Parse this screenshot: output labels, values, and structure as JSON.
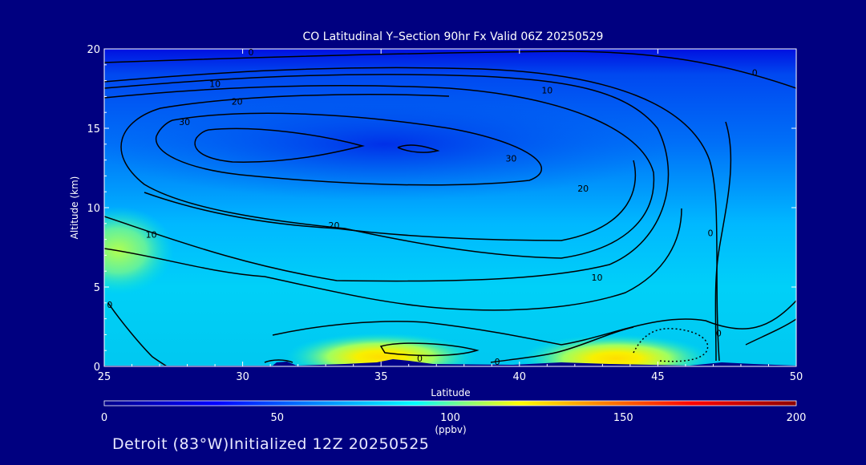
{
  "chart_data": {
    "type": "heatmap",
    "title": "CO Latitudinal Y–Section 90hr  Fx Valid 06Z 20250529",
    "xlabel": "Latitude",
    "ylabel": "Altitude (km)",
    "xlim": [
      25,
      50
    ],
    "ylim": [
      0,
      20
    ],
    "x_ticks": [
      "25",
      "30",
      "35",
      "40",
      "45",
      "50"
    ],
    "y_ticks": [
      "0",
      "5",
      "10",
      "15",
      "20"
    ],
    "colorbar": {
      "label": "(ppbv)",
      "ticks": [
        "0",
        "50",
        "100",
        "150",
        "200"
      ],
      "min": 0,
      "max": 200,
      "colors": [
        "#00008b",
        "#0000ff",
        "#0080ff",
        "#00ffff",
        "#80ff80",
        "#ffff00",
        "#ff8000",
        "#ff0000",
        "#8b0000"
      ]
    },
    "contour_labels": [
      {
        "text": "0",
        "lat": 30.3,
        "alt": 19.8
      },
      {
        "text": "10",
        "lat": 29.0,
        "alt": 17.8
      },
      {
        "text": "20",
        "lat": 29.8,
        "alt": 16.7
      },
      {
        "text": "30",
        "lat": 27.9,
        "alt": 15.4
      },
      {
        "text": "10",
        "lat": 41.0,
        "alt": 17.4
      },
      {
        "text": "0",
        "lat": 48.5,
        "alt": 18.5
      },
      {
        "text": "30",
        "lat": 39.7,
        "alt": 13.1
      },
      {
        "text": "20",
        "lat": 42.3,
        "alt": 11.2
      },
      {
        "text": "20",
        "lat": 33.3,
        "alt": 8.9
      },
      {
        "text": "10",
        "lat": 26.7,
        "alt": 8.3
      },
      {
        "text": "10",
        "lat": 42.8,
        "alt": 5.6
      },
      {
        "text": "0",
        "lat": 46.9,
        "alt": 8.4
      },
      {
        "text": "0",
        "lat": 25.2,
        "alt": 3.9
      },
      {
        "text": "0",
        "lat": 47.2,
        "alt": 2.1
      },
      {
        "text": "0",
        "lat": 39.2,
        "alt": 0.3
      },
      {
        "text": "0",
        "lat": 36.4,
        "alt": 0.5
      }
    ],
    "hotspots": [
      {
        "lat": 35.0,
        "alt": 0.6,
        "value": 120
      },
      {
        "lat": 43.5,
        "alt": 0.5,
        "value": 125
      },
      {
        "lat": 25.5,
        "alt": 7.3,
        "value": 100
      }
    ]
  },
  "footer": {
    "location": "Detroit (83°W)Initialized 12Z 20250525"
  }
}
